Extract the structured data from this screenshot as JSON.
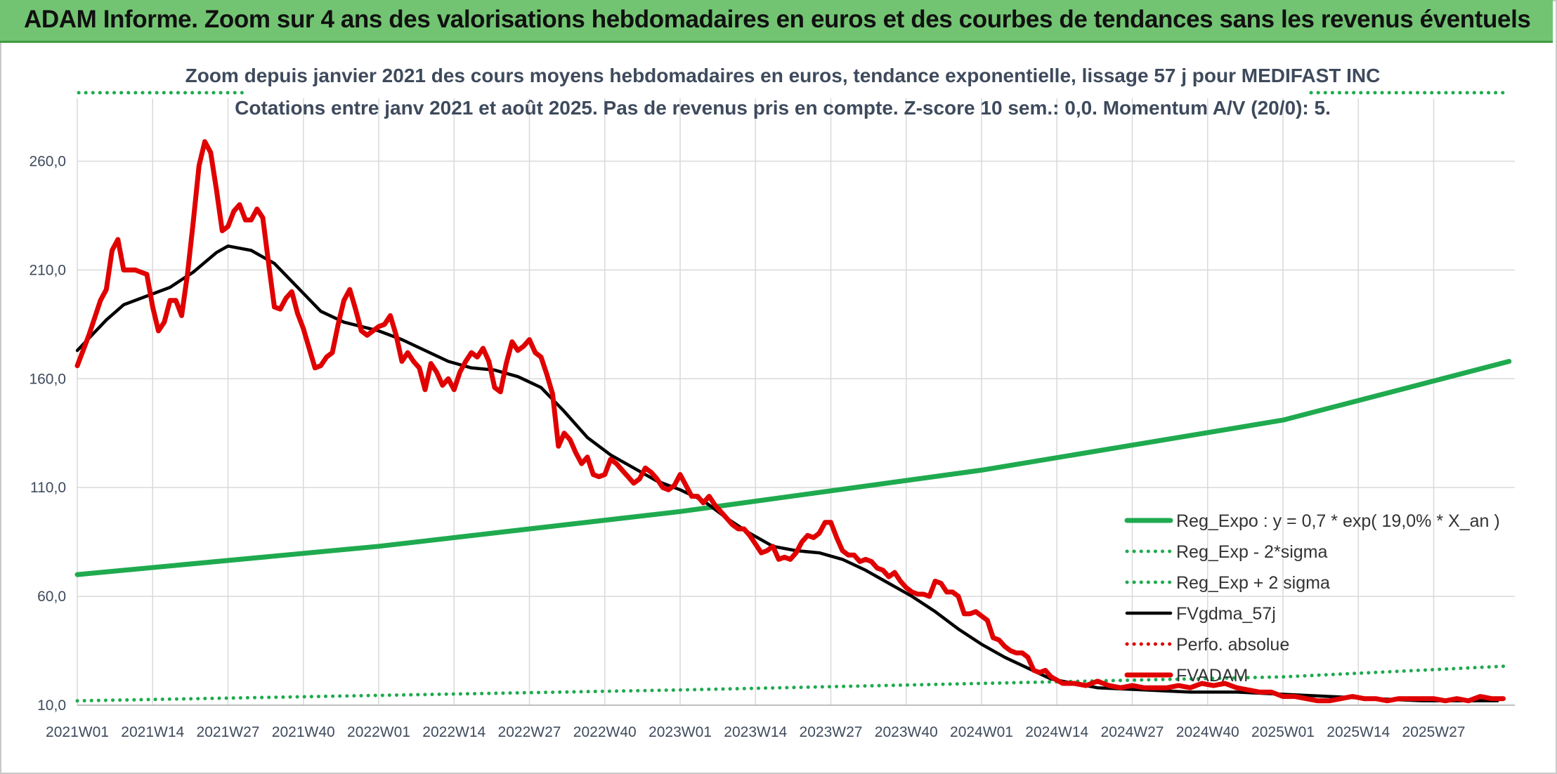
{
  "banner": {
    "title": "ADAM Informe. Zoom sur 4 ans des valorisations hebdomadaires en euros et des courbes de tendances sans les revenus éventuels",
    "bg_color": "#72c472"
  },
  "chart_data": {
    "type": "line",
    "subtitle_line1": "Zoom depuis janvier 2021 des cours moyens hebdomadaires en euros, tendance exponentielle, lissage 57 j pour MEDIFAST INC",
    "subtitle_line2": "Cotations entre janv 2021 et août 2025. Pas de revenus pris en compte. Z-score 10 sem.: 0,0. Momentum A/V (20/0): 5.",
    "ylim": [
      10,
      285
    ],
    "yticks": [
      "10,0",
      "60,0",
      "110,0",
      "160,0",
      "210,0",
      "260,0"
    ],
    "xticks": [
      "2021W01",
      "2021W14",
      "2021W27",
      "2021W40",
      "2022W01",
      "2022W14",
      "2022W27",
      "2022W40",
      "2023W01",
      "2023W14",
      "2023W27",
      "2023W40",
      "2024W01",
      "2024W14",
      "2024W27",
      "2024W40",
      "2025W01",
      "2025W14",
      "2025W27"
    ],
    "grid": true,
    "legend_position": "bottom-right",
    "x_unit": "weeks since 2021W01",
    "series": [
      {
        "name": "Reg_Expo : y = 0,7 * exp( 19,0% *  X_an )",
        "color": "#1faa4f",
        "style": "solid-thick",
        "points": [
          [
            0,
            70
          ],
          [
            52,
            83
          ],
          [
            104,
            99
          ],
          [
            156,
            118
          ],
          [
            208,
            141
          ],
          [
            247,
            168
          ]
        ]
      },
      {
        "name": "Reg_Exp - 2*sigma",
        "color": "#1faa4f",
        "style": "dotted",
        "points": [
          [
            0,
            12
          ],
          [
            104,
            17
          ],
          [
            156,
            20
          ],
          [
            208,
            23
          ],
          [
            247,
            28
          ]
        ]
      },
      {
        "name": "Reg_Exp + 2 sigma",
        "color": "#1faa4f",
        "style": "dotted",
        "points": []
      },
      {
        "name": "FVgdma_57j",
        "color": "#000000",
        "style": "solid",
        "points": [
          [
            0,
            173
          ],
          [
            5,
            187
          ],
          [
            8,
            194
          ],
          [
            12,
            198
          ],
          [
            16,
            202
          ],
          [
            20,
            209
          ],
          [
            24,
            218
          ],
          [
            26,
            221
          ],
          [
            30,
            219
          ],
          [
            34,
            213
          ],
          [
            38,
            202
          ],
          [
            42,
            191
          ],
          [
            46,
            186
          ],
          [
            52,
            182
          ],
          [
            56,
            178
          ],
          [
            60,
            173
          ],
          [
            64,
            168
          ],
          [
            68,
            165
          ],
          [
            72,
            164
          ],
          [
            76,
            161
          ],
          [
            80,
            156
          ],
          [
            84,
            145
          ],
          [
            88,
            133
          ],
          [
            92,
            125
          ],
          [
            96,
            119
          ],
          [
            100,
            113
          ],
          [
            104,
            109
          ],
          [
            108,
            104
          ],
          [
            112,
            96
          ],
          [
            116,
            89
          ],
          [
            120,
            83
          ],
          [
            124,
            81
          ],
          [
            128,
            80
          ],
          [
            132,
            77
          ],
          [
            136,
            72
          ],
          [
            140,
            66
          ],
          [
            144,
            60
          ],
          [
            148,
            53
          ],
          [
            152,
            45
          ],
          [
            156,
            38
          ],
          [
            160,
            32
          ],
          [
            164,
            27
          ],
          [
            168,
            22
          ],
          [
            172,
            20
          ],
          [
            176,
            18
          ],
          [
            184,
            17
          ],
          [
            192,
            16
          ],
          [
            200,
            16
          ],
          [
            208,
            15
          ],
          [
            216,
            14
          ],
          [
            224,
            13
          ],
          [
            232,
            12
          ],
          [
            240,
            12
          ],
          [
            245,
            12
          ]
        ]
      },
      {
        "name": "Perfo. absolue",
        "color": "#e00000",
        "style": "dotted",
        "points": []
      },
      {
        "name": "FVADAM",
        "color": "#e00000",
        "style": "solid-thick",
        "points": [
          [
            0,
            166
          ],
          [
            2,
            180
          ],
          [
            4,
            196
          ],
          [
            5,
            201
          ],
          [
            6,
            219
          ],
          [
            7,
            224
          ],
          [
            8,
            210
          ],
          [
            10,
            210
          ],
          [
            12,
            208
          ],
          [
            13,
            193
          ],
          [
            14,
            182
          ],
          [
            15,
            186
          ],
          [
            16,
            196
          ],
          [
            17,
            196
          ],
          [
            18,
            189
          ],
          [
            19,
            208
          ],
          [
            20,
            232
          ],
          [
            21,
            258
          ],
          [
            22,
            269
          ],
          [
            23,
            264
          ],
          [
            24,
            247
          ],
          [
            25,
            228
          ],
          [
            26,
            230
          ],
          [
            27,
            237
          ],
          [
            28,
            240
          ],
          [
            29,
            233
          ],
          [
            30,
            233
          ],
          [
            31,
            238
          ],
          [
            32,
            234
          ],
          [
            33,
            213
          ],
          [
            34,
            193
          ],
          [
            35,
            192
          ],
          [
            36,
            197
          ],
          [
            37,
            200
          ],
          [
            38,
            190
          ],
          [
            39,
            183
          ],
          [
            40,
            174
          ],
          [
            41,
            165
          ],
          [
            42,
            166
          ],
          [
            43,
            170
          ],
          [
            44,
            172
          ],
          [
            45,
            185
          ],
          [
            46,
            196
          ],
          [
            47,
            201
          ],
          [
            48,
            192
          ],
          [
            49,
            182
          ],
          [
            50,
            180
          ],
          [
            51,
            182
          ],
          [
            52,
            184
          ],
          [
            53,
            185
          ],
          [
            54,
            189
          ],
          [
            55,
            180
          ],
          [
            56,
            168
          ],
          [
            57,
            172
          ],
          [
            58,
            168
          ],
          [
            59,
            165
          ],
          [
            60,
            155
          ],
          [
            61,
            167
          ],
          [
            62,
            163
          ],
          [
            63,
            157
          ],
          [
            64,
            160
          ],
          [
            65,
            155
          ],
          [
            66,
            163
          ],
          [
            67,
            168
          ],
          [
            68,
            172
          ],
          [
            69,
            170
          ],
          [
            70,
            174
          ],
          [
            71,
            168
          ],
          [
            72,
            156
          ],
          [
            73,
            154
          ],
          [
            74,
            167
          ],
          [
            75,
            177
          ],
          [
            76,
            173
          ],
          [
            77,
            175
          ],
          [
            78,
            178
          ],
          [
            79,
            172
          ],
          [
            80,
            170
          ],
          [
            81,
            162
          ],
          [
            82,
            153
          ],
          [
            83,
            129
          ],
          [
            84,
            135
          ],
          [
            85,
            132
          ],
          [
            86,
            126
          ],
          [
            87,
            121
          ],
          [
            88,
            124
          ],
          [
            89,
            116
          ],
          [
            90,
            115
          ],
          [
            91,
            116
          ],
          [
            92,
            123
          ],
          [
            93,
            121
          ],
          [
            94,
            118
          ],
          [
            95,
            115
          ],
          [
            96,
            112
          ],
          [
            97,
            114
          ],
          [
            98,
            119
          ],
          [
            99,
            117
          ],
          [
            100,
            114
          ],
          [
            101,
            110
          ],
          [
            102,
            109
          ],
          [
            103,
            111
          ],
          [
            104,
            116
          ],
          [
            105,
            111
          ],
          [
            106,
            106
          ],
          [
            107,
            106
          ],
          [
            108,
            103
          ],
          [
            109,
            106
          ],
          [
            110,
            102
          ],
          [
            111,
            99
          ],
          [
            112,
            96
          ],
          [
            113,
            93
          ],
          [
            114,
            91
          ],
          [
            115,
            91
          ],
          [
            116,
            88
          ],
          [
            117,
            84
          ],
          [
            118,
            80
          ],
          [
            119,
            81
          ],
          [
            120,
            83
          ],
          [
            121,
            77
          ],
          [
            122,
            78
          ],
          [
            123,
            77
          ],
          [
            124,
            80
          ],
          [
            125,
            85
          ],
          [
            126,
            88
          ],
          [
            127,
            87
          ],
          [
            128,
            89
          ],
          [
            129,
            94
          ],
          [
            130,
            94
          ],
          [
            131,
            87
          ],
          [
            132,
            81
          ],
          [
            133,
            79
          ],
          [
            134,
            79
          ],
          [
            135,
            76
          ],
          [
            136,
            77
          ],
          [
            137,
            76
          ],
          [
            138,
            73
          ],
          [
            139,
            72
          ],
          [
            140,
            69
          ],
          [
            141,
            71
          ],
          [
            142,
            67
          ],
          [
            143,
            64
          ],
          [
            144,
            62
          ],
          [
            145,
            61
          ],
          [
            146,
            61
          ],
          [
            147,
            60
          ],
          [
            148,
            67
          ],
          [
            149,
            66
          ],
          [
            150,
            62
          ],
          [
            151,
            62
          ],
          [
            152,
            60
          ],
          [
            153,
            52
          ],
          [
            154,
            52
          ],
          [
            155,
            53
          ],
          [
            156,
            51
          ],
          [
            157,
            49
          ],
          [
            158,
            41
          ],
          [
            159,
            40
          ],
          [
            160,
            37
          ],
          [
            161,
            35
          ],
          [
            162,
            34
          ],
          [
            163,
            34
          ],
          [
            164,
            32
          ],
          [
            165,
            26
          ],
          [
            166,
            25
          ],
          [
            167,
            26
          ],
          [
            168,
            23
          ],
          [
            170,
            20
          ],
          [
            172,
            20
          ],
          [
            174,
            19
          ],
          [
            176,
            21
          ],
          [
            178,
            19
          ],
          [
            180,
            18
          ],
          [
            182,
            19
          ],
          [
            184,
            18
          ],
          [
            186,
            18
          ],
          [
            188,
            18
          ],
          [
            190,
            19
          ],
          [
            192,
            18
          ],
          [
            194,
            20
          ],
          [
            196,
            19
          ],
          [
            198,
            20
          ],
          [
            200,
            18
          ],
          [
            202,
            17
          ],
          [
            204,
            16
          ],
          [
            206,
            16
          ],
          [
            208,
            14
          ],
          [
            210,
            14
          ],
          [
            212,
            13
          ],
          [
            214,
            12
          ],
          [
            216,
            12
          ],
          [
            218,
            13
          ],
          [
            220,
            14
          ],
          [
            222,
            13
          ],
          [
            224,
            13
          ],
          [
            226,
            12
          ],
          [
            228,
            13
          ],
          [
            230,
            13
          ],
          [
            232,
            13
          ],
          [
            234,
            13
          ],
          [
            236,
            12
          ],
          [
            238,
            13
          ],
          [
            240,
            12
          ],
          [
            242,
            14
          ],
          [
            244,
            13
          ],
          [
            246,
            13
          ]
        ]
      }
    ]
  }
}
